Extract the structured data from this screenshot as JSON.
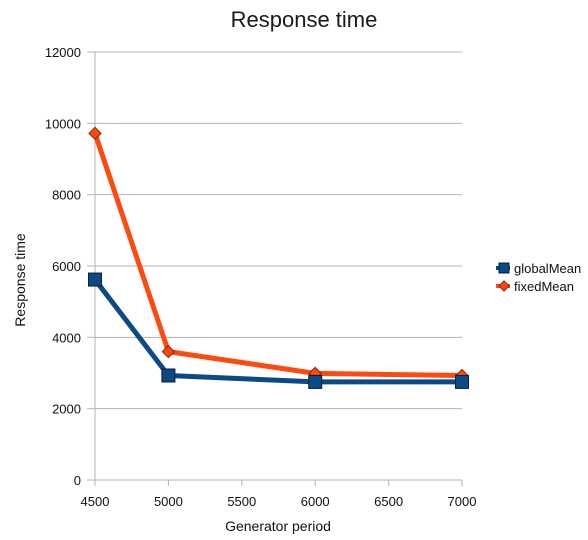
{
  "chart_data": {
    "type": "line",
    "title": "Response time",
    "xlabel": "Generator period",
    "ylabel": "Response time",
    "x": [
      4500,
      5000,
      6000,
      7000
    ],
    "xlim": [
      4500,
      7000
    ],
    "ylim": [
      0,
      12000
    ],
    "x_ticks": [
      4500,
      5000,
      5500,
      6000,
      6500,
      7000
    ],
    "y_ticks": [
      0,
      2000,
      4000,
      6000,
      8000,
      10000,
      12000
    ],
    "grid": "horizontal",
    "legend_position": "right",
    "series": [
      {
        "name": "globalMean",
        "values": [
          5620,
          2930,
          2750,
          2750
        ],
        "color": "#0c4a86",
        "marker": "square"
      },
      {
        "name": "fixedMean",
        "values": [
          9720,
          3600,
          2990,
          2930
        ],
        "color": "#ff4a0f",
        "marker": "diamond"
      }
    ]
  }
}
